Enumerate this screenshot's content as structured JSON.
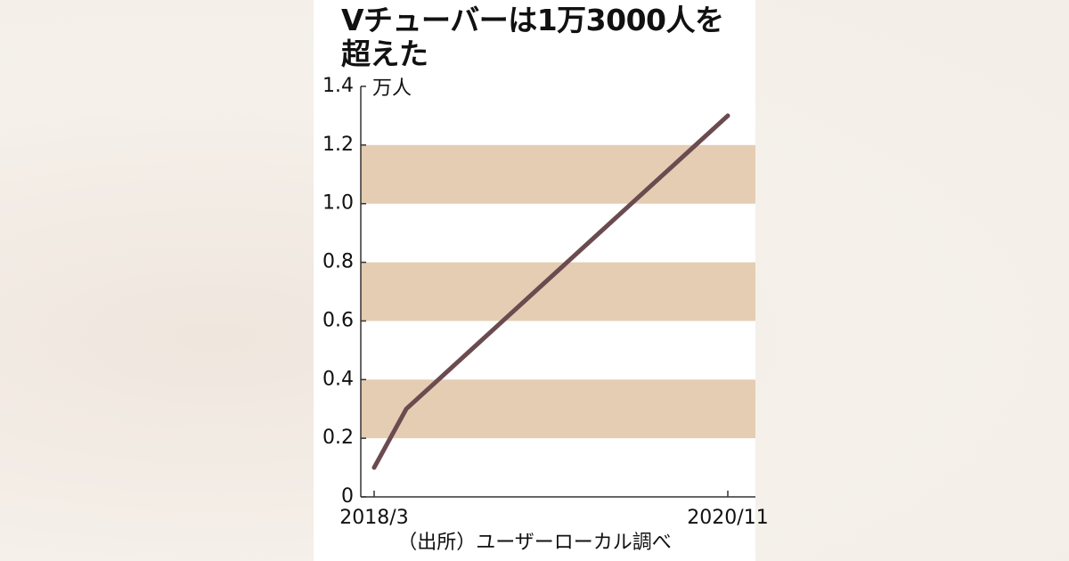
{
  "chart_data": {
    "type": "line",
    "title": "Vチューバーは1万3000人を超えた",
    "y_unit": "万人",
    "source": "（出所）ユーザーローカル調べ",
    "x": [
      "2018/3",
      null,
      null,
      null,
      null,
      null,
      null,
      null,
      null,
      null,
      null,
      "2020/11"
    ],
    "series": [
      {
        "name": "Vチューバー",
        "color": "#6b4b50",
        "values": [
          0.1,
          0.3,
          0.4,
          0.5,
          0.6,
          0.7,
          0.8,
          0.9,
          1.0,
          1.1,
          1.2,
          1.3
        ]
      }
    ],
    "ylim": [
      0,
      1.4
    ],
    "yticks": [
      0,
      0.2,
      0.4,
      0.6,
      0.8,
      {
        "value": 1,
        "label": "1.0"
      },
      1.2,
      1.4
    ],
    "band_color": "#e5cdb3"
  }
}
